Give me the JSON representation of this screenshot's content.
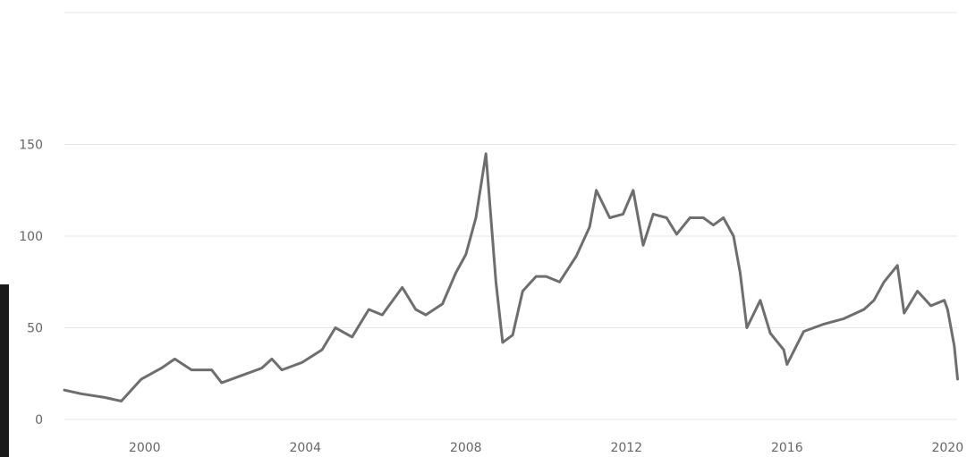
{
  "chart_data": {
    "type": "line",
    "title": "",
    "xlabel": "",
    "ylabel": "",
    "x_ticks": [
      "2000",
      "2004",
      "2008",
      "2012",
      "2016",
      "2020"
    ],
    "y_ticks": [
      "0",
      "50",
      "100",
      "150"
    ],
    "xlim": [
      "1998-01",
      "2020-06"
    ],
    "ylim": [
      0,
      180
    ],
    "grid": true,
    "legend": "none",
    "color": "#6e6e6e",
    "series": [
      {
        "x": [
          "1998-01",
          "1998-06",
          "1999-01",
          "1999-06",
          "1999-12",
          "2000-06",
          "2000-10",
          "2001-03",
          "2001-09",
          "2001-12",
          "2002-06",
          "2002-12",
          "2003-03",
          "2003-06",
          "2003-12",
          "2004-06",
          "2004-10",
          "2005-03",
          "2005-08",
          "2005-12",
          "2006-06",
          "2006-10",
          "2007-01",
          "2007-06",
          "2007-10",
          "2008-01",
          "2008-04",
          "2008-07",
          "2008-10",
          "2008-12",
          "2009-03",
          "2009-06",
          "2009-10",
          "2010-01",
          "2010-05",
          "2010-10",
          "2011-02",
          "2011-04",
          "2011-08",
          "2011-12",
          "2012-03",
          "2012-06",
          "2012-09",
          "2013-01",
          "2013-04",
          "2013-08",
          "2013-12",
          "2014-03",
          "2014-06",
          "2014-09",
          "2014-11",
          "2015-01",
          "2015-05",
          "2015-08",
          "2015-12",
          "2016-01",
          "2016-06",
          "2016-12",
          "2017-06",
          "2017-12",
          "2018-03",
          "2018-06",
          "2018-10",
          "2018-12",
          "2019-04",
          "2019-08",
          "2019-12",
          "2020-01",
          "2020-03",
          "2020-04"
        ],
        "y": [
          16,
          14,
          12,
          10,
          22,
          28,
          33,
          27,
          27,
          20,
          24,
          28,
          33,
          27,
          31,
          38,
          50,
          45,
          60,
          57,
          72,
          60,
          57,
          63,
          80,
          90,
          110,
          145,
          75,
          42,
          46,
          70,
          78,
          78,
          75,
          89,
          105,
          125,
          110,
          112,
          125,
          95,
          112,
          110,
          101,
          110,
          110,
          106,
          110,
          100,
          80,
          50,
          65,
          47,
          38,
          30,
          48,
          52,
          55,
          60,
          65,
          75,
          84,
          58,
          70,
          62,
          65,
          60,
          40,
          22
        ]
      }
    ]
  }
}
